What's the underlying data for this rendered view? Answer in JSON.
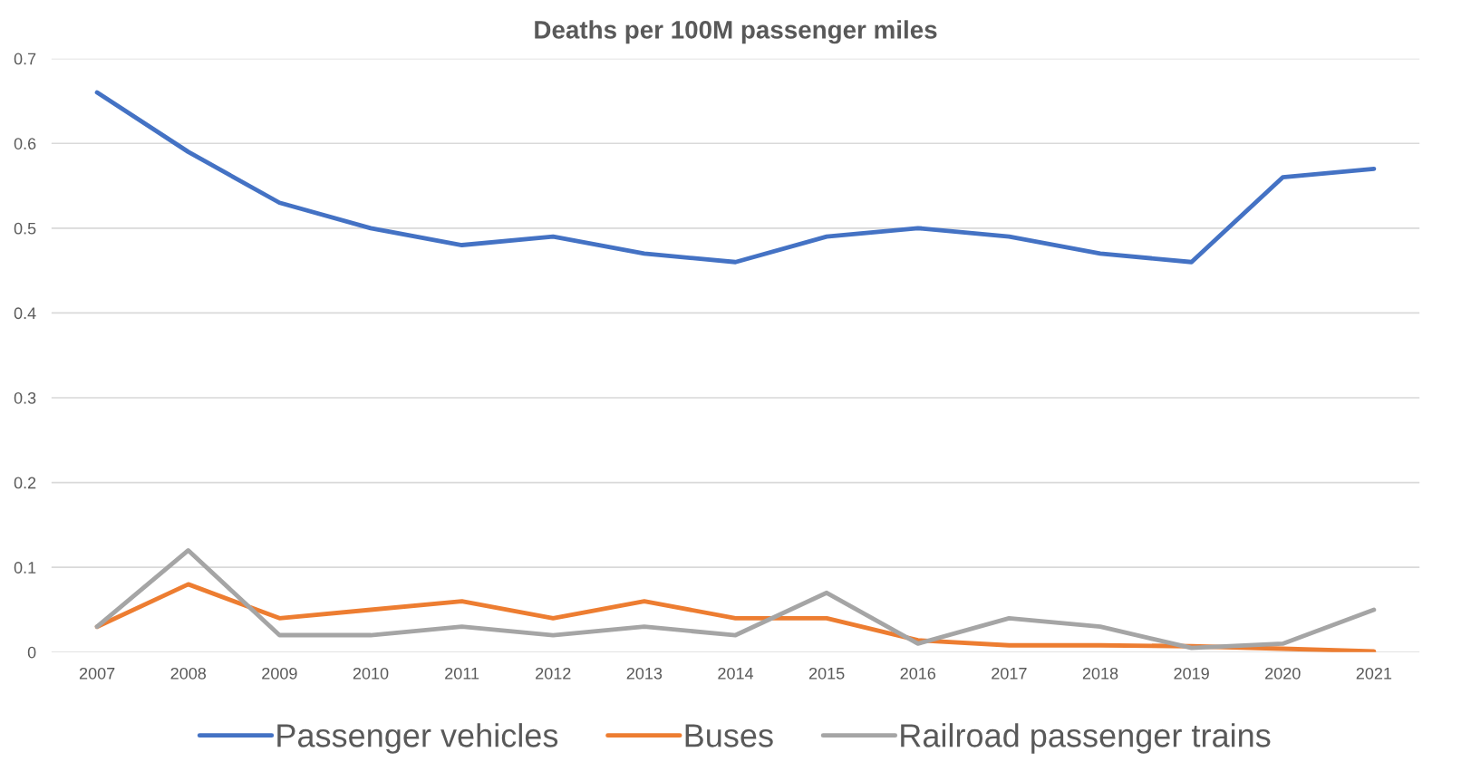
{
  "chart_data": {
    "type": "line",
    "title": "Deaths per 100M passenger miles",
    "categories": [
      "2007",
      "2008",
      "2009",
      "2010",
      "2011",
      "2012",
      "2013",
      "2014",
      "2015",
      "2016",
      "2017",
      "2018",
      "2019",
      "2020",
      "2021"
    ],
    "series": [
      {
        "name": "Passenger vehicles",
        "color": "#4472c4",
        "values": [
          0.66,
          0.59,
          0.53,
          0.5,
          0.48,
          0.49,
          0.47,
          0.46,
          0.49,
          0.5,
          0.49,
          0.47,
          0.46,
          0.56,
          0.57
        ]
      },
      {
        "name": "Buses",
        "color": "#ed7d31",
        "values": [
          0.03,
          0.08,
          0.04,
          0.05,
          0.06,
          0.04,
          0.06,
          0.04,
          0.04,
          0.014,
          0.008,
          0.008,
          0.007,
          0.004,
          0.001
        ]
      },
      {
        "name": "Railroad passenger trains",
        "color": "#a5a5a5",
        "values": [
          0.03,
          0.12,
          0.02,
          0.02,
          0.03,
          0.02,
          0.03,
          0.02,
          0.07,
          0.01,
          0.04,
          0.03,
          0.005,
          0.01,
          0.05
        ]
      }
    ],
    "ylim": [
      0,
      0.7
    ],
    "yticks": [
      0,
      0.1,
      0.2,
      0.3,
      0.4,
      0.5,
      0.6,
      0.7
    ],
    "grid": "y",
    "legend": "bottom",
    "marker": "none",
    "line_style": "solid"
  }
}
